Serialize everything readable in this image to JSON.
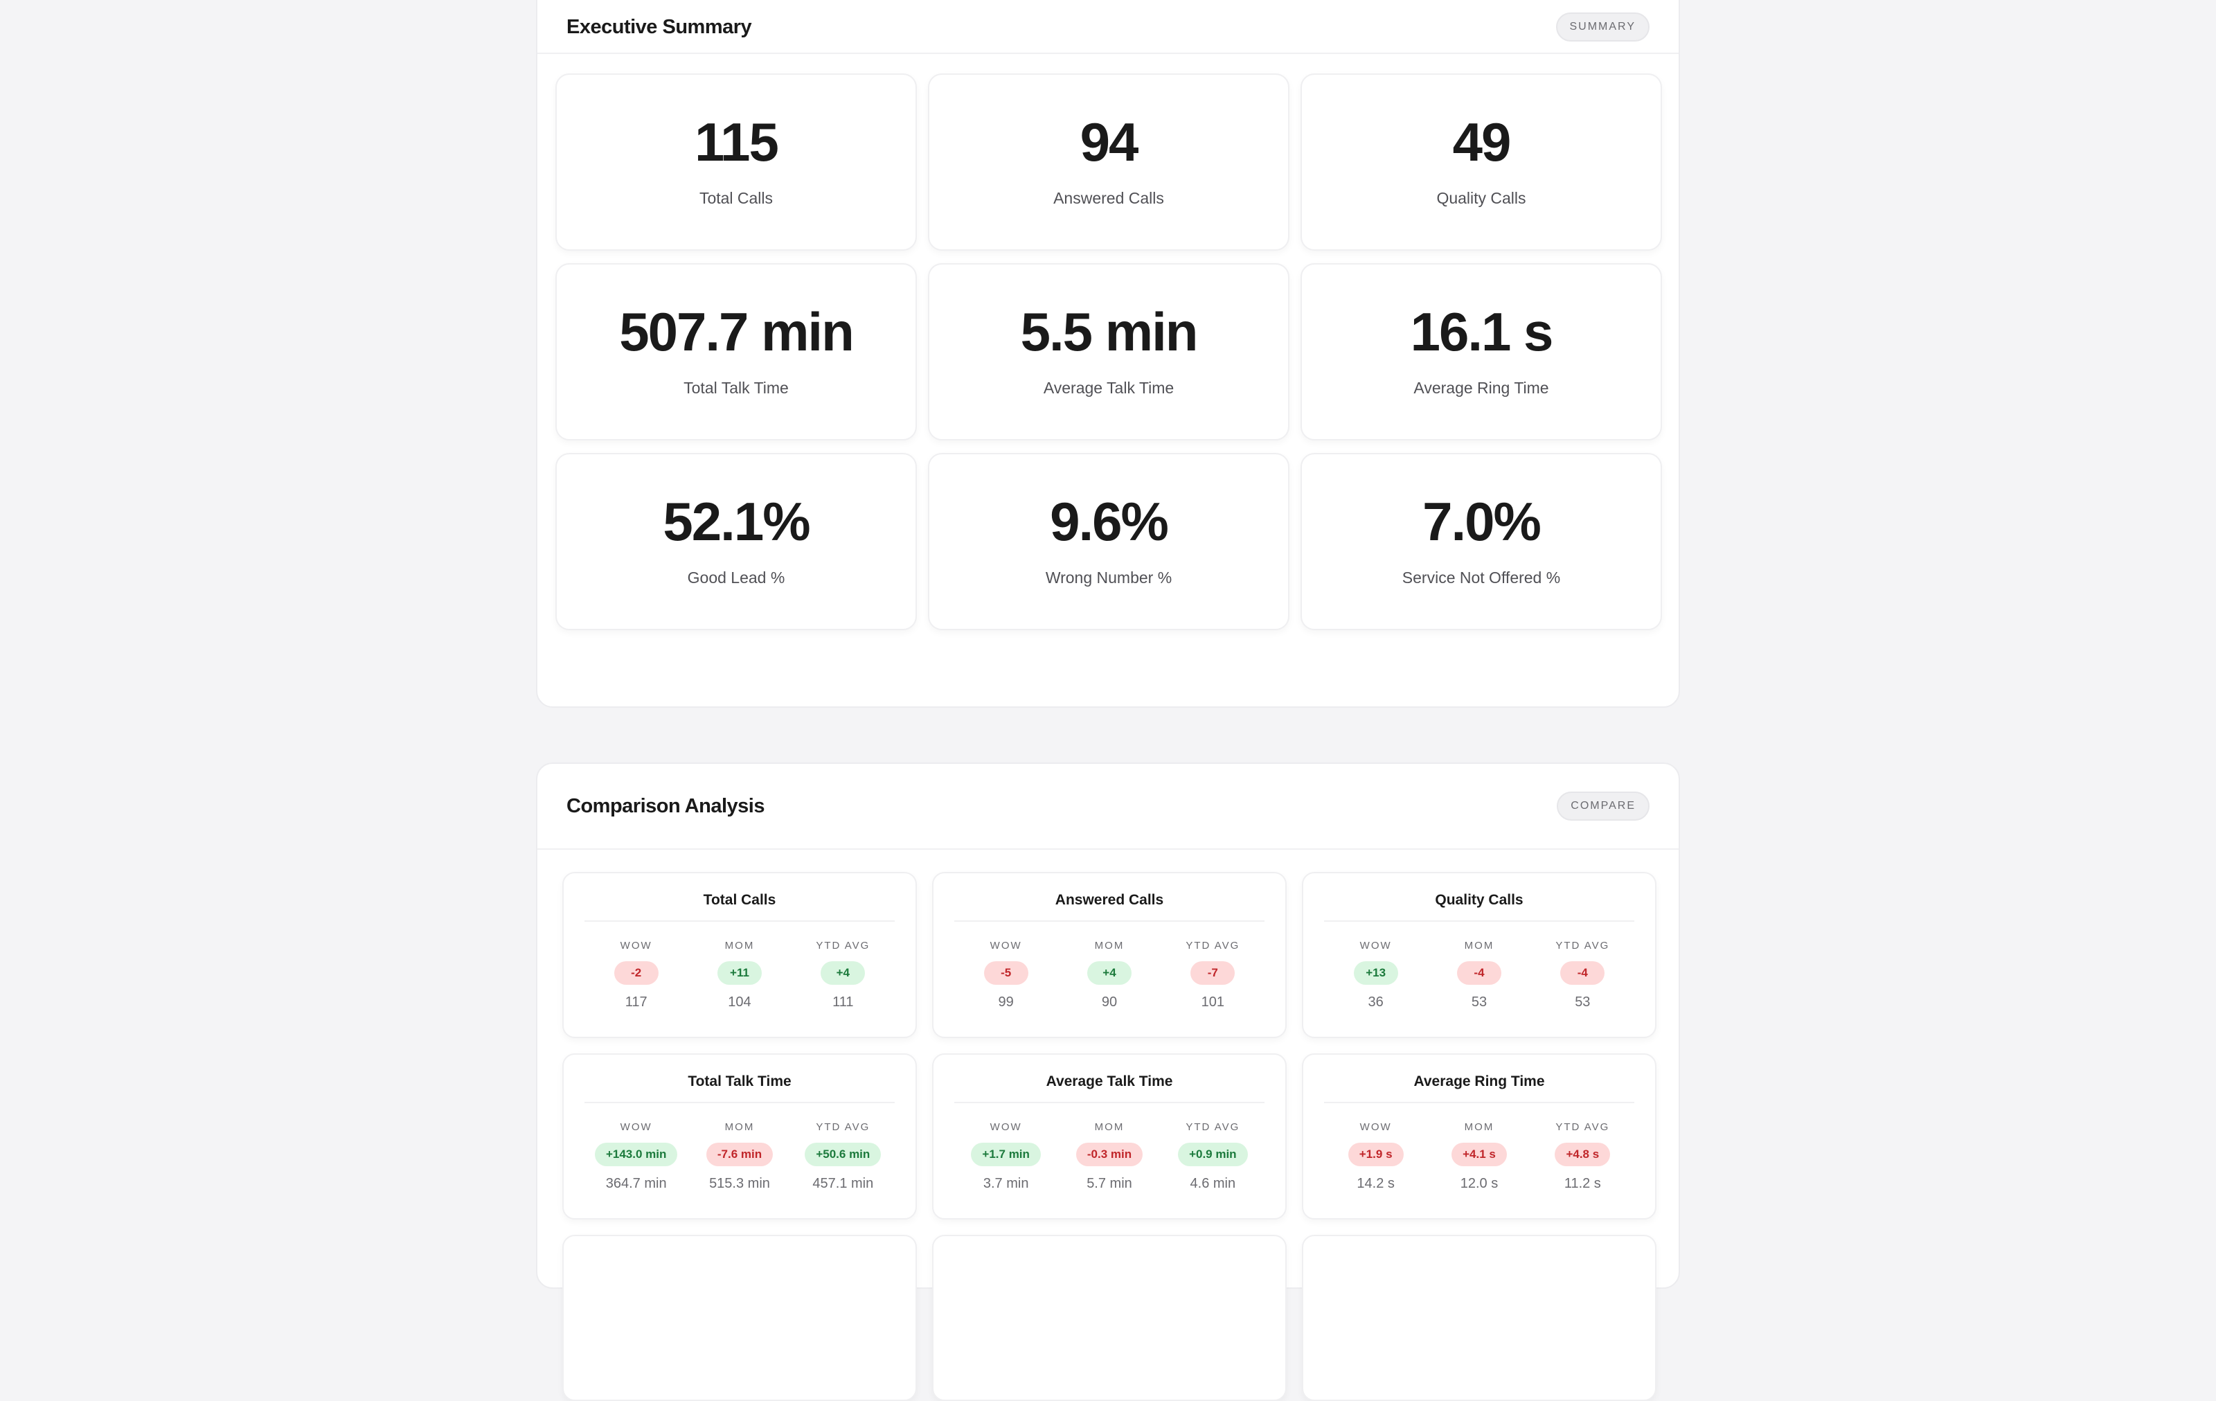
{
  "summary": {
    "title": "Executive Summary",
    "tag": "SUMMARY",
    "kpis": [
      {
        "value": "115",
        "label": "Total Calls"
      },
      {
        "value": "94",
        "label": "Answered Calls"
      },
      {
        "value": "49",
        "label": "Quality Calls"
      },
      {
        "value": "507.7 min",
        "label": "Total Talk Time"
      },
      {
        "value": "5.5 min",
        "label": "Average Talk Time"
      },
      {
        "value": "16.1 s",
        "label": "Average Ring Time"
      },
      {
        "value": "52.1%",
        "label": "Good Lead %"
      },
      {
        "value": "9.6%",
        "label": "Wrong Number %"
      },
      {
        "value": "7.0%",
        "label": "Service Not Offered %"
      }
    ]
  },
  "comparison": {
    "title": "Comparison Analysis",
    "tag": "COMPARE",
    "column_labels": [
      "WOW",
      "MOM",
      "YTD AVG"
    ],
    "colors": {
      "good_bg": "#d9f5e0",
      "good_text": "#1c7a3c",
      "bad_bg": "#fdd8d8",
      "bad_text": "#c0262a"
    },
    "cards": [
      {
        "title": "Total Calls",
        "cols": [
          {
            "delta": "-2",
            "status": "bad",
            "base": "117"
          },
          {
            "delta": "+11",
            "status": "good",
            "base": "104"
          },
          {
            "delta": "+4",
            "status": "good",
            "base": "111"
          }
        ]
      },
      {
        "title": "Answered Calls",
        "cols": [
          {
            "delta": "-5",
            "status": "bad",
            "base": "99"
          },
          {
            "delta": "+4",
            "status": "good",
            "base": "90"
          },
          {
            "delta": "-7",
            "status": "bad",
            "base": "101"
          }
        ]
      },
      {
        "title": "Quality Calls",
        "cols": [
          {
            "delta": "+13",
            "status": "good",
            "base": "36"
          },
          {
            "delta": "-4",
            "status": "bad",
            "base": "53"
          },
          {
            "delta": "-4",
            "status": "bad",
            "base": "53"
          }
        ]
      },
      {
        "title": "Total Talk Time",
        "cols": [
          {
            "delta": "+143.0 min",
            "status": "good",
            "base": "364.7 min"
          },
          {
            "delta": "-7.6 min",
            "status": "bad",
            "base": "515.3 min"
          },
          {
            "delta": "+50.6 min",
            "status": "good",
            "base": "457.1 min"
          }
        ]
      },
      {
        "title": "Average Talk Time",
        "cols": [
          {
            "delta": "+1.7 min",
            "status": "good",
            "base": "3.7 min"
          },
          {
            "delta": "-0.3 min",
            "status": "bad",
            "base": "5.7 min"
          },
          {
            "delta": "+0.9 min",
            "status": "good",
            "base": "4.6 min"
          }
        ]
      },
      {
        "title": "Average Ring Time",
        "cols": [
          {
            "delta": "+1.9 s",
            "status": "bad",
            "base": "14.2 s"
          },
          {
            "delta": "+4.1 s",
            "status": "bad",
            "base": "12.0 s"
          },
          {
            "delta": "+4.8 s",
            "status": "bad",
            "base": "11.2 s"
          }
        ]
      }
    ]
  }
}
